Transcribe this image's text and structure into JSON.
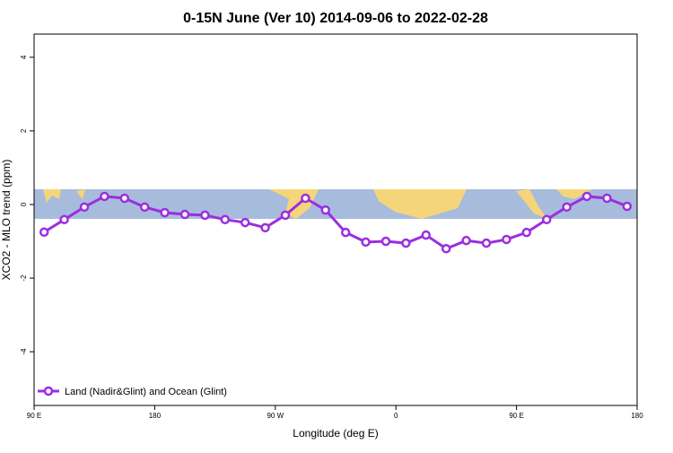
{
  "chart_data": {
    "type": "line",
    "title": "0-15N June (Ver 10)   2014-09-06 to 2022-02-28",
    "x_label": "Longitude (deg E)",
    "y_label": "XCO2 - MLO trend (ppm)",
    "x": [
      97.5,
      112.5,
      127.5,
      142.5,
      157.5,
      172.5,
      187.5,
      202.5,
      217.5,
      232.5,
      247.5,
      262.5,
      277.5,
      292.5,
      307.5,
      322.5,
      337.5,
      352.5,
      367.5,
      382.5,
      397.5,
      412.5,
      427.5,
      442.5,
      457.5,
      472.5,
      487.5,
      502.5,
      517.5,
      532.5
    ],
    "series": [
      {
        "name": "Land (Nadir&Glint) and Ocean (Glint)",
        "color": "#9b2ee0",
        "values": [
          -0.75,
          -0.41,
          -0.07,
          0.22,
          0.17,
          -0.07,
          -0.22,
          -0.27,
          -0.29,
          -0.41,
          -0.49,
          -0.63,
          -0.29,
          0.17,
          -0.15,
          -0.76,
          -1.02,
          -1.0,
          -1.05,
          -0.83,
          -1.2,
          -0.98,
          -1.05,
          -0.95,
          -0.76,
          -0.41,
          -0.07,
          0.22,
          0.17,
          -0.05
        ]
      }
    ],
    "xlim": [
      90,
      540
    ],
    "ylim": [
      -5.46,
      4.63
    ],
    "xticks": [
      {
        "value": 90,
        "label": "90 E"
      },
      180,
      {
        "value": 270,
        "label": "90 W"
      },
      {
        "value": 360,
        "label": "0"
      },
      {
        "value": 450,
        "label": "90 E"
      },
      {
        "value": 540,
        "label": "180"
      }
    ],
    "yticks": [
      -4,
      -2,
      0,
      2,
      4
    ],
    "legend": "bottom-left"
  }
}
